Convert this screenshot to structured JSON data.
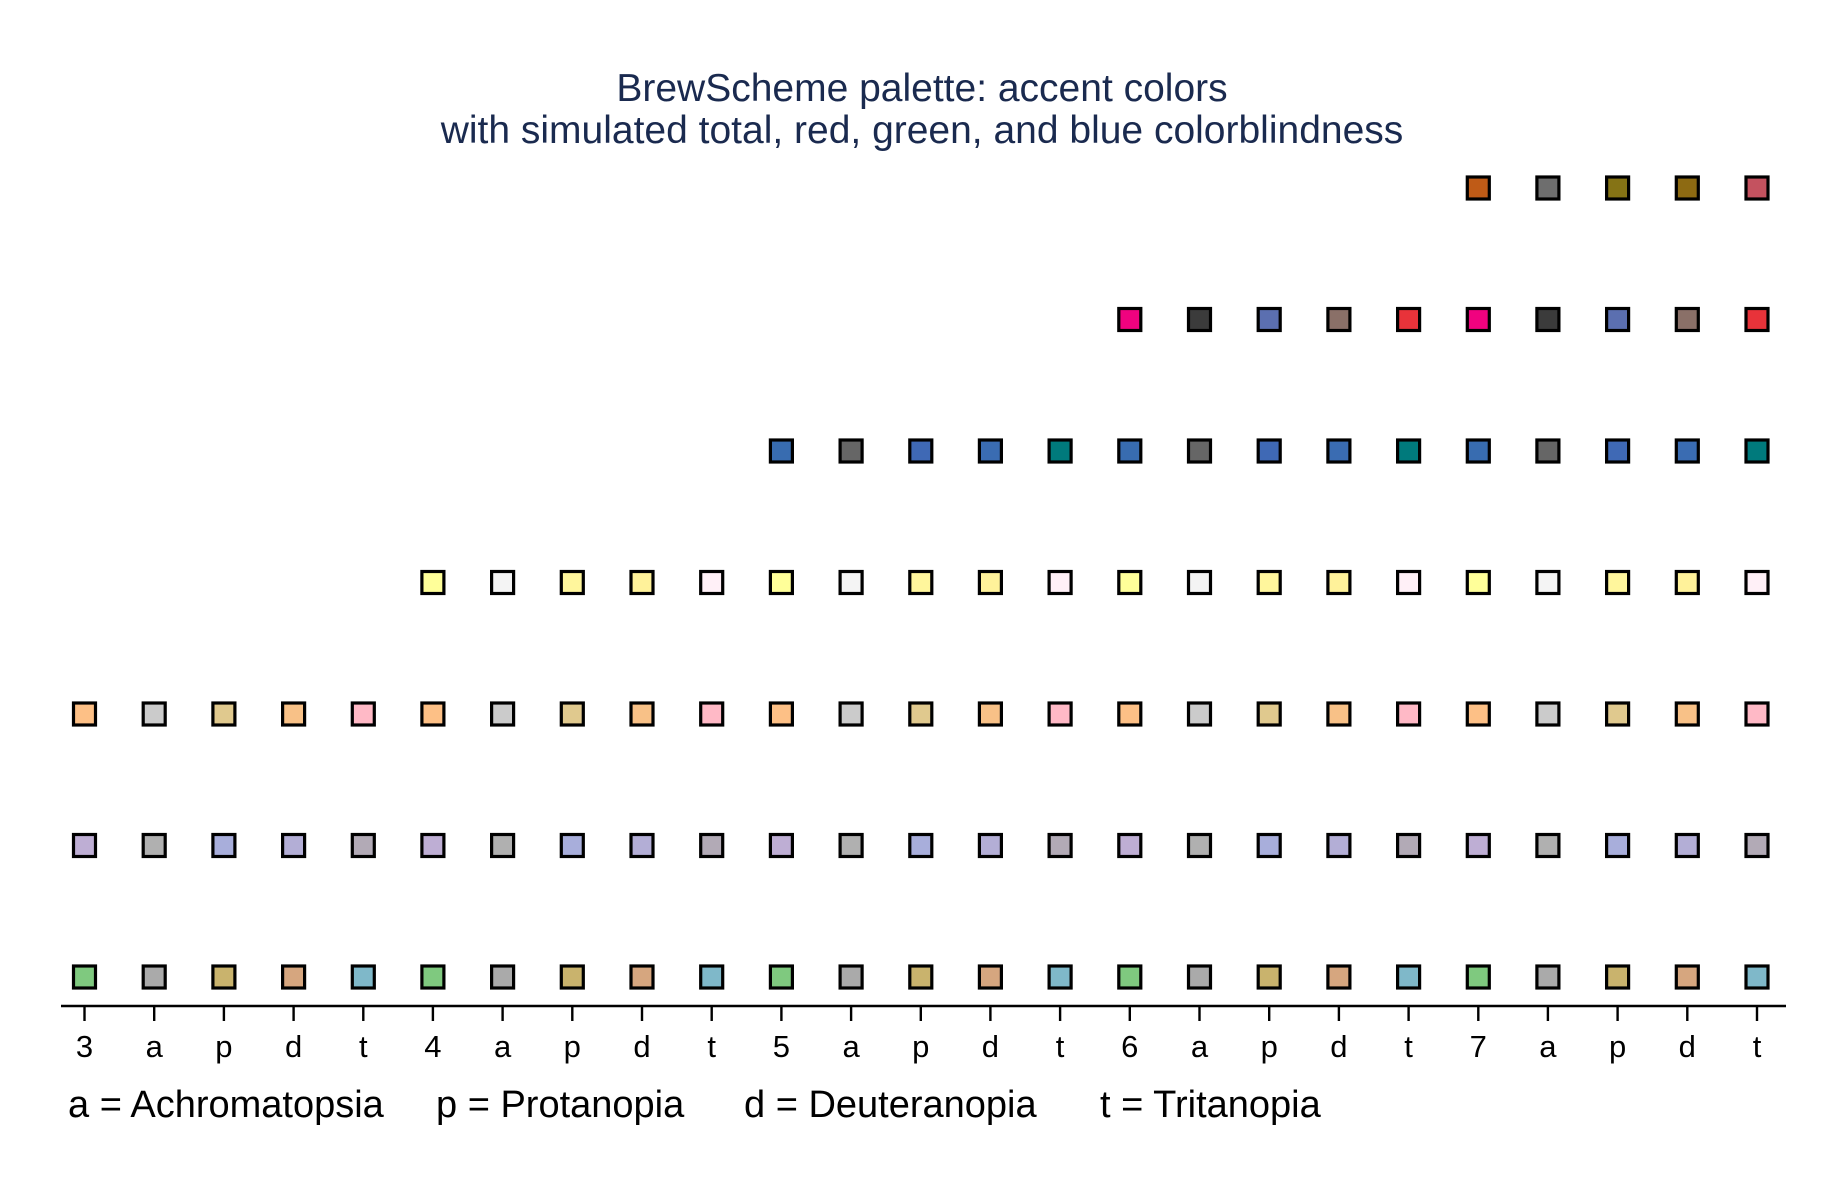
{
  "chart_data": {
    "type": "scatter",
    "title": "BrewScheme palette: accent colors",
    "subtitle": "with simulated total, red, green, and blue colorblindness",
    "xlabel": "",
    "ylabel": "",
    "grid": false,
    "categories": [
      "3",
      "a",
      "p",
      "d",
      "t",
      "4",
      "a",
      "p",
      "d",
      "t",
      "5",
      "a",
      "p",
      "d",
      "t",
      "6",
      "a",
      "p",
      "d",
      "t",
      "7",
      "a",
      "p",
      "d",
      "t"
    ],
    "notes": [
      "a = Achromatopsia",
      "p = Protanopia",
      "d = Deuteranopia",
      "t = Tritanopia"
    ],
    "rows": [
      [
        "#7fc97f",
        "#aaaaaa",
        "#c9b36d",
        "#d6a67f",
        "#7fb8c9",
        "#7fc97f",
        "#aaaaaa",
        "#c9b36d",
        "#d6a67f",
        "#7fb8c9",
        "#7fc97f",
        "#aaaaaa",
        "#c9b36d",
        "#d6a67f",
        "#7fb8c9",
        "#7fc97f",
        "#aaaaaa",
        "#c9b36d",
        "#d6a67f",
        "#7fb8c9",
        "#7fc97f",
        "#aaaaaa",
        "#c9b36d",
        "#d6a67f",
        "#7fb8c9"
      ],
      [
        "#beaed4",
        "#b0b0b0",
        "#a8aedb",
        "#b3aed6",
        "#b2aab6",
        "#beaed4",
        "#b0b0b0",
        "#a8aedb",
        "#b3aed6",
        "#b2aab6",
        "#beaed4",
        "#b0b0b0",
        "#a8aedb",
        "#b3aed6",
        "#b2aab6",
        "#beaed4",
        "#b0b0b0",
        "#a8aedb",
        "#b3aed6",
        "#b2aab6",
        "#beaed4",
        "#b0b0b0",
        "#a8aedb",
        "#b3aed6",
        "#b2aab6"
      ],
      [
        "#fdc086",
        "#cbcbcb",
        "#e0c98e",
        "#f8c187",
        "#ffb9c6",
        "#fdc086",
        "#cbcbcb",
        "#e0c98e",
        "#f8c187",
        "#ffb9c6",
        "#fdc086",
        "#cbcbcb",
        "#e0c98e",
        "#f8c187",
        "#ffb9c6",
        "#fdc086",
        "#cbcbcb",
        "#e0c98e",
        "#f8c187",
        "#ffb9c6",
        "#fdc086",
        "#cbcbcb",
        "#e0c98e",
        "#f8c187",
        "#ffb9c6"
      ],
      [
        null,
        null,
        null,
        null,
        null,
        "#ffff99",
        "#f4f4f4",
        "#fff69c",
        "#fff29a",
        "#fff0f7",
        "#ffff99",
        "#f4f4f4",
        "#fff69c",
        "#fff29a",
        "#fff0f7",
        "#ffff99",
        "#f4f4f4",
        "#fff69c",
        "#fff29a",
        "#fff0f7",
        "#ffff99",
        "#f4f4f4",
        "#fff69c",
        "#fff29a",
        "#fff0f7"
      ],
      [
        null,
        null,
        null,
        null,
        null,
        null,
        null,
        null,
        null,
        null,
        "#386cb0",
        "#666666",
        "#3f69b5",
        "#3a6cb2",
        "#007a7c",
        "#386cb0",
        "#666666",
        "#3f69b5",
        "#3a6cb2",
        "#007a7c",
        "#386cb0",
        "#666666",
        "#3f69b5",
        "#3a6cb2",
        "#007a7c"
      ],
      [
        null,
        null,
        null,
        null,
        null,
        null,
        null,
        null,
        null,
        null,
        null,
        null,
        null,
        null,
        null,
        "#f0027f",
        "#3b3b3b",
        "#5b6fb0",
        "#8a7068",
        "#e8333a",
        "#f0027f",
        "#3b3b3b",
        "#5b6fb0",
        "#8a7068",
        "#e8333a"
      ],
      [
        null,
        null,
        null,
        null,
        null,
        null,
        null,
        null,
        null,
        null,
        null,
        null,
        null,
        null,
        null,
        null,
        null,
        null,
        null,
        null,
        "#bf5b17",
        "#6e6e6e",
        "#857315",
        "#8d6a12",
        "#c4525f"
      ]
    ]
  }
}
